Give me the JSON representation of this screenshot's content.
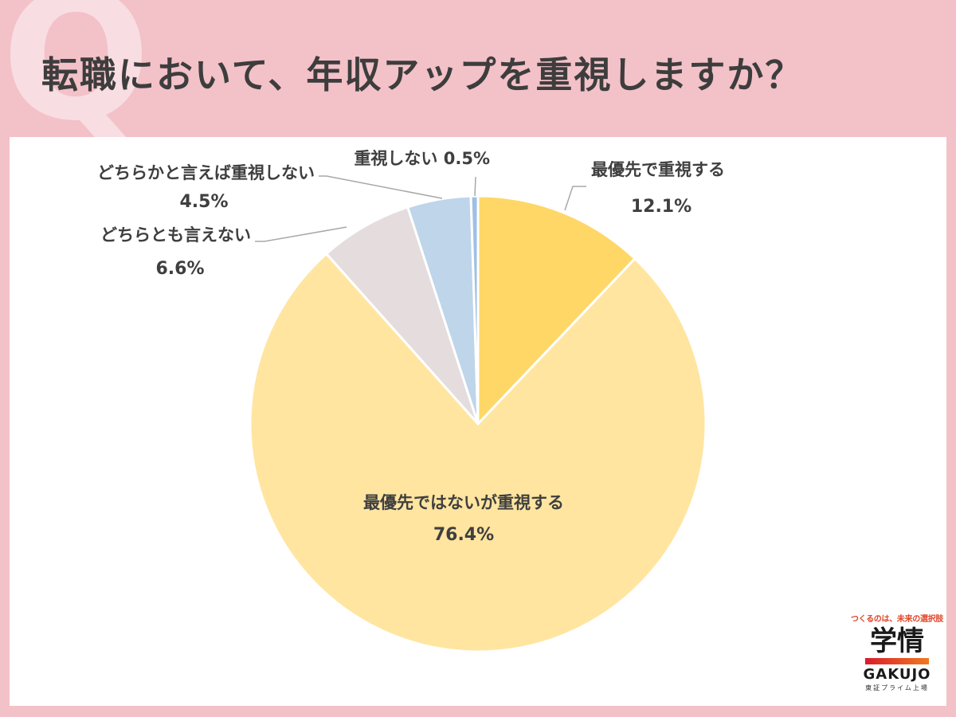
{
  "header": {
    "q_mark": "Q",
    "title": "転職において、年収アップを重視しますか？"
  },
  "brand": {
    "tagline": "つくるのは、未来の選択肢",
    "kanji": "学情",
    "latin": "GAKUJO",
    "sub": "東証プライム上場"
  },
  "chart_data": {
    "type": "pie",
    "title": "転職において、年収アップを重視しますか？",
    "start_angle_deg": 0,
    "direction": "clockwise",
    "slices": [
      {
        "label": "最優先で重視する",
        "value": 12.1,
        "value_label": "12.1%",
        "color": "#fed766"
      },
      {
        "label": "最優先ではないが重視する",
        "value": 76.4,
        "value_label": "76.4%",
        "color": "#ffe5a0"
      },
      {
        "label": "どちらとも言えない",
        "value": 6.6,
        "value_label": "6.6%",
        "color": "#e4dcdd"
      },
      {
        "label": "どちらかと言えば重視しない",
        "value": 4.5,
        "value_label": "4.5%",
        "color": "#bed5ea"
      },
      {
        "label": "重視しない",
        "value": 0.5,
        "value_label": "0.5%",
        "color": "#9fbfe6"
      }
    ]
  }
}
